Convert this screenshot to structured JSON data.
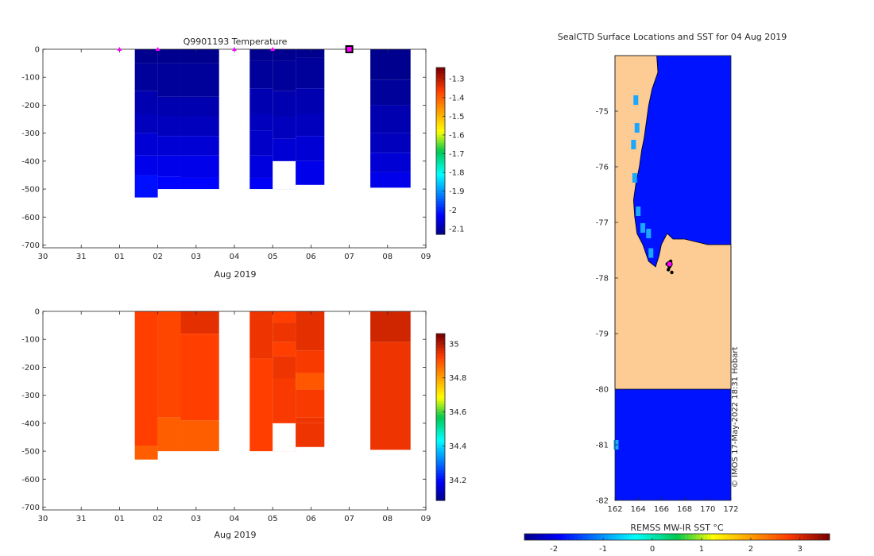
{
  "chart_data": [
    {
      "type": "heatmap",
      "title": "Q9901193  Temperature",
      "xlabel": "Aug 2019",
      "x_ticks": [
        "30",
        "31",
        "01",
        "02",
        "03",
        "04",
        "05",
        "06",
        "07",
        "08",
        "09"
      ],
      "xlim": [
        -2,
        8
      ],
      "ylim": [
        -710,
        0
      ],
      "y_ticks": [
        "0",
        "-100",
        "-200",
        "-300",
        "-400",
        "-500",
        "-600",
        "-700"
      ],
      "y_tick_values": [
        0,
        -100,
        -200,
        -300,
        -400,
        -500,
        -600,
        -700
      ],
      "colorbar": {
        "min": -2.13,
        "max": -1.24,
        "ticks": [
          "-1.3",
          "-1.4",
          "-1.5",
          "-1.6",
          "-1.7",
          "-1.8",
          "-1.9",
          "-2",
          "-2.1"
        ],
        "tick_values": [
          -1.3,
          -1.4,
          -1.5,
          -1.6,
          -1.7,
          -1.8,
          -1.9,
          -2.0,
          -2.1
        ]
      },
      "markers": [
        0,
        1,
        3,
        4
      ],
      "current_marker": 6,
      "profiles": [
        {
          "x0": 0.4,
          "x1": 1.0,
          "depth": 530,
          "layers": [
            [
              0,
              -2.13
            ],
            [
              50,
              -2.12
            ],
            [
              150,
              -2.1
            ],
            [
              230,
              -2.09
            ],
            [
              300,
              -2.07
            ],
            [
              380,
              -2.05
            ],
            [
              450,
              -2.02
            ]
          ]
        },
        {
          "x0": 1.0,
          "x1": 1.6,
          "depth": 500,
          "layers": [
            [
              0,
              -2.13
            ],
            [
              50,
              -2.12
            ],
            [
              170,
              -2.1
            ],
            [
              240,
              -2.09
            ],
            [
              310,
              -2.07
            ],
            [
              380,
              -2.05
            ],
            [
              455,
              -2.03
            ]
          ]
        },
        {
          "x0": 1.6,
          "x1": 2.6,
          "depth": 500,
          "layers": [
            [
              0,
              -2.13
            ],
            [
              50,
              -2.12
            ],
            [
              170,
              -2.1
            ],
            [
              240,
              -2.09
            ],
            [
              310,
              -2.07
            ],
            [
              380,
              -2.05
            ],
            [
              460,
              -2.03
            ]
          ]
        },
        {
          "x0": 3.4,
          "x1": 4.0,
          "depth": 500,
          "layers": [
            [
              0,
              -2.13
            ],
            [
              40,
              -2.12
            ],
            [
              140,
              -2.1
            ],
            [
              230,
              -2.09
            ],
            [
              290,
              -2.08
            ],
            [
              380,
              -2.06
            ],
            [
              460,
              -2.04
            ]
          ]
        },
        {
          "x0": 4.0,
          "x1": 4.6,
          "depth": 500,
          "layers": [
            [
              0,
              -2.13
            ],
            [
              40,
              -2.12
            ],
            [
              150,
              -2.1
            ],
            [
              240,
              -2.09
            ],
            [
              320,
              -2.07
            ]
          ],
          "gap": [
            400,
            500
          ]
        },
        {
          "x0": 4.6,
          "x1": 5.35,
          "depth": 485,
          "layers": [
            [
              0,
              -2.13
            ],
            [
              30,
              -2.12
            ],
            [
              140,
              -2.1
            ],
            [
              230,
              -2.09
            ],
            [
              310,
              -2.07
            ],
            [
              400,
              -2.05
            ]
          ]
        },
        {
          "x0": 6.55,
          "x1": 7.6,
          "depth": 495,
          "layers": [
            [
              0,
              -2.13
            ],
            [
              110,
              -2.12
            ],
            [
              200,
              -2.1
            ],
            [
              300,
              -2.09
            ],
            [
              370,
              -2.07
            ],
            [
              440,
              -2.05
            ]
          ]
        }
      ]
    },
    {
      "type": "heatmap",
      "title": "",
      "xlabel": "Aug 2019",
      "x_ticks": [
        "30",
        "31",
        "01",
        "02",
        "03",
        "04",
        "05",
        "06",
        "07",
        "08",
        "09"
      ],
      "xlim": [
        -2,
        8
      ],
      "ylim": [
        -710,
        0
      ],
      "y_ticks": [
        "0",
        "-100",
        "-200",
        "-300",
        "-400",
        "-500",
        "-600",
        "-700"
      ],
      "y_tick_values": [
        0,
        -100,
        -200,
        -300,
        -400,
        -500,
        -600,
        -700
      ],
      "colorbar": {
        "min": 34.08,
        "max": 35.06,
        "ticks": [
          "35",
          "34.8",
          "34.6",
          "34.4",
          "34.2"
        ],
        "tick_values": [
          35.0,
          34.8,
          34.6,
          34.4,
          34.2
        ]
      },
      "profiles": [
        {
          "x0": 0.4,
          "x1": 1.0,
          "depth": 530,
          "layers": [
            [
              0,
              34.93
            ],
            [
              480,
              34.89
            ]
          ]
        },
        {
          "x0": 1.0,
          "x1": 1.6,
          "depth": 500,
          "layers": [
            [
              0,
              34.92
            ],
            [
              380,
              34.89
            ]
          ]
        },
        {
          "x0": 1.6,
          "x1": 2.6,
          "depth": 500,
          "layers": [
            [
              0,
              34.96
            ],
            [
              80,
              34.93
            ],
            [
              390,
              34.89
            ]
          ]
        },
        {
          "x0": 3.4,
          "x1": 4.0,
          "depth": 500,
          "layers": [
            [
              0,
              34.95
            ],
            [
              170,
              34.93
            ]
          ]
        },
        {
          "x0": 4.0,
          "x1": 4.6,
          "depth": 500,
          "layers": [
            [
              0,
              34.93
            ],
            [
              40,
              34.95
            ],
            [
              110,
              34.93
            ],
            [
              160,
              34.95
            ],
            [
              240,
              34.94
            ]
          ],
          "gap": [
            400,
            500
          ]
        },
        {
          "x0": 4.6,
          "x1": 5.35,
          "depth": 485,
          "layers": [
            [
              0,
              34.96
            ],
            [
              140,
              34.94
            ],
            [
              220,
              34.9
            ],
            [
              280,
              34.94
            ],
            [
              380,
              34.95
            ],
            [
              400,
              34.95
            ]
          ]
        },
        {
          "x0": 6.55,
          "x1": 7.6,
          "depth": 495,
          "layers": [
            [
              0,
              34.98
            ],
            [
              110,
              34.95
            ]
          ]
        }
      ]
    },
    {
      "type": "heatmap",
      "title": "SealCTD Surface Locations and SST for 04 Aug 2019",
      "xlabel": "",
      "x_ticks": [
        "162",
        "164",
        "166",
        "168",
        "170",
        "172"
      ],
      "x_tick_values": [
        162,
        164,
        166,
        168,
        170,
        172
      ],
      "y_ticks": [
        "-75",
        "-76",
        "-77",
        "-78",
        "-79",
        "-80",
        "-81",
        "-82"
      ],
      "y_tick_values": [
        -75,
        -76,
        -77,
        -78,
        -79,
        -80,
        -81,
        -82
      ],
      "xlim": [
        162,
        172
      ],
      "ylim": [
        -82,
        -74
      ],
      "sea_sst": -1.8,
      "land_color": "#fccc94",
      "coast": [
        [
          162.0,
          -74.0
        ],
        [
          165.6,
          -74.0
        ],
        [
          165.7,
          -74.3
        ],
        [
          165.2,
          -74.6
        ],
        [
          164.9,
          -74.9
        ],
        [
          164.7,
          -75.2
        ],
        [
          164.5,
          -75.5
        ],
        [
          164.3,
          -75.7
        ],
        [
          164.1,
          -76.0
        ],
        [
          163.8,
          -76.3
        ],
        [
          163.6,
          -76.6
        ],
        [
          163.7,
          -76.9
        ],
        [
          163.9,
          -77.2
        ],
        [
          164.4,
          -77.4
        ],
        [
          164.9,
          -77.7
        ],
        [
          165.5,
          -77.8
        ],
        [
          165.8,
          -77.6
        ],
        [
          166.0,
          -77.4
        ],
        [
          166.5,
          -77.2
        ],
        [
          167.0,
          -77.3
        ],
        [
          168.0,
          -77.3
        ],
        [
          169.0,
          -77.35
        ],
        [
          170.0,
          -77.4
        ],
        [
          171.0,
          -77.4
        ],
        [
          172.0,
          -77.4
        ],
        [
          172.0,
          -80.0
        ],
        [
          162.0,
          -80.0
        ]
      ],
      "ice_blocks": [
        [
          163.8,
          -74.8
        ],
        [
          163.6,
          -75.6
        ],
        [
          163.7,
          -76.2
        ],
        [
          164.0,
          -76.8
        ],
        [
          164.4,
          -77.1
        ],
        [
          165.1,
          -77.55
        ],
        [
          164.9,
          -77.2
        ],
        [
          163.9,
          -75.3
        ],
        [
          162.1,
          -81.0
        ]
      ],
      "tracks": [
        [
          166.5,
          -77.75
        ],
        [
          166.8,
          -77.7
        ],
        [
          166.6,
          -77.85
        ],
        [
          166.9,
          -77.9
        ],
        [
          166.7,
          -77.8
        ]
      ],
      "selected_location": [
        166.7,
        -77.75
      ],
      "colorbar": {
        "label": "REMSS MW-IR SST °C",
        "min": -2.6,
        "max": 3.6,
        "ticks": [
          "-2",
          "-1",
          "0",
          "1",
          "2",
          "3"
        ],
        "tick_values": [
          -2,
          -1,
          0,
          1,
          2,
          3
        ]
      },
      "credit": "© IMOS 17-May-2022 18:31 Hobart"
    }
  ],
  "colors": {
    "marker": "#ff00ff",
    "axis": "#262626"
  }
}
